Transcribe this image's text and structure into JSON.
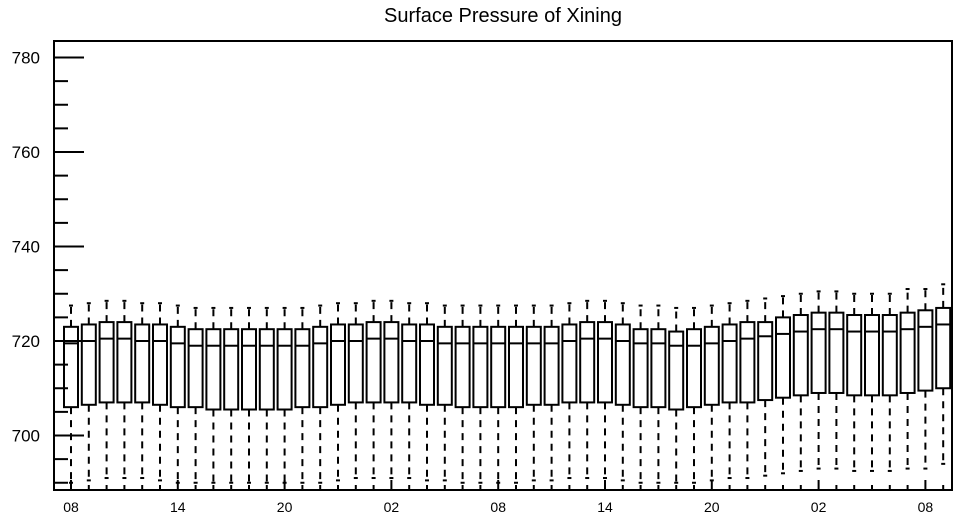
{
  "chart_data": {
    "type": "boxplot",
    "title": "Surface Pressure of Xining",
    "xlabel": "",
    "ylabel": "",
    "ylim": [
      688,
      784
    ],
    "yticks": [
      700,
      720,
      740,
      760,
      780
    ],
    "xtick_labels": [
      "08",
      "14",
      "20",
      "02",
      "08",
      "14",
      "20",
      "02",
      "08"
    ],
    "xtick_positions": [
      0,
      6,
      12,
      18,
      24,
      30,
      36,
      42,
      48
    ],
    "grid": false,
    "legend": "none",
    "boxes": [
      {
        "x": 0,
        "q1": 706,
        "median": 719.5,
        "q3": 723,
        "low": 690,
        "high": 727.5
      },
      {
        "x": 1,
        "q1": 706.5,
        "median": 720,
        "q3": 723.5,
        "low": 690.5,
        "high": 728
      },
      {
        "x": 2,
        "q1": 707,
        "median": 720.5,
        "q3": 724,
        "low": 691,
        "high": 728.5
      },
      {
        "x": 3,
        "q1": 707,
        "median": 720.5,
        "q3": 724,
        "low": 691,
        "high": 728.5
      },
      {
        "x": 4,
        "q1": 707,
        "median": 720,
        "q3": 723.5,
        "low": 691,
        "high": 728
      },
      {
        "x": 5,
        "q1": 706.5,
        "median": 720,
        "q3": 723.5,
        "low": 690.5,
        "high": 728
      },
      {
        "x": 6,
        "q1": 706,
        "median": 719.5,
        "q3": 723,
        "low": 690,
        "high": 727.5
      },
      {
        "x": 7,
        "q1": 706,
        "median": 719,
        "q3": 722.5,
        "low": 690,
        "high": 727
      },
      {
        "x": 8,
        "q1": 705.5,
        "median": 719,
        "q3": 722.5,
        "low": 690,
        "high": 727
      },
      {
        "x": 9,
        "q1": 705.5,
        "median": 719,
        "q3": 722.5,
        "low": 690,
        "high": 727
      },
      {
        "x": 10,
        "q1": 705.5,
        "median": 719,
        "q3": 722.5,
        "low": 690,
        "high": 727
      },
      {
        "x": 11,
        "q1": 705.5,
        "median": 719,
        "q3": 722.5,
        "low": 690,
        "high": 727
      },
      {
        "x": 12,
        "q1": 705.5,
        "median": 719,
        "q3": 722.5,
        "low": 690,
        "high": 727
      },
      {
        "x": 13,
        "q1": 706,
        "median": 719,
        "q3": 722.5,
        "low": 690,
        "high": 727
      },
      {
        "x": 14,
        "q1": 706,
        "median": 719.5,
        "q3": 723,
        "low": 690,
        "high": 727.5
      },
      {
        "x": 15,
        "q1": 706.5,
        "median": 720,
        "q3": 723.5,
        "low": 690.5,
        "high": 728
      },
      {
        "x": 16,
        "q1": 707,
        "median": 720,
        "q3": 723.5,
        "low": 691,
        "high": 728
      },
      {
        "x": 17,
        "q1": 707,
        "median": 720.5,
        "q3": 724,
        "low": 691,
        "high": 728.5
      },
      {
        "x": 18,
        "q1": 707,
        "median": 720.5,
        "q3": 724,
        "low": 691,
        "high": 728.5
      },
      {
        "x": 19,
        "q1": 707,
        "median": 720,
        "q3": 723.5,
        "low": 691,
        "high": 728
      },
      {
        "x": 20,
        "q1": 706.5,
        "median": 720,
        "q3": 723.5,
        "low": 690.5,
        "high": 728
      },
      {
        "x": 21,
        "q1": 706.5,
        "median": 719.5,
        "q3": 723,
        "low": 690.5,
        "high": 727.5
      },
      {
        "x": 22,
        "q1": 706,
        "median": 719.5,
        "q3": 723,
        "low": 690,
        "high": 727.5
      },
      {
        "x": 23,
        "q1": 706,
        "median": 719.5,
        "q3": 723,
        "low": 690,
        "high": 727.5
      },
      {
        "x": 24,
        "q1": 706,
        "median": 719.5,
        "q3": 723,
        "low": 690,
        "high": 727.5
      },
      {
        "x": 25,
        "q1": 706,
        "median": 719.5,
        "q3": 723,
        "low": 690,
        "high": 727.5
      },
      {
        "x": 26,
        "q1": 706.5,
        "median": 719.5,
        "q3": 723,
        "low": 690.5,
        "high": 727.5
      },
      {
        "x": 27,
        "q1": 706.5,
        "median": 719.5,
        "q3": 723,
        "low": 690.5,
        "high": 727.5
      },
      {
        "x": 28,
        "q1": 707,
        "median": 720,
        "q3": 723.5,
        "low": 691,
        "high": 728
      },
      {
        "x": 29,
        "q1": 707,
        "median": 720.5,
        "q3": 724,
        "low": 691,
        "high": 728.5
      },
      {
        "x": 30,
        "q1": 707,
        "median": 720.5,
        "q3": 724,
        "low": 691,
        "high": 728.5
      },
      {
        "x": 31,
        "q1": 706.5,
        "median": 720,
        "q3": 723.5,
        "low": 690.5,
        "high": 728
      },
      {
        "x": 32,
        "q1": 706,
        "median": 719.5,
        "q3": 722.5,
        "low": 690,
        "high": 727.5
      },
      {
        "x": 33,
        "q1": 706,
        "median": 719.5,
        "q3": 722.5,
        "low": 690,
        "high": 727.5
      },
      {
        "x": 34,
        "q1": 705.5,
        "median": 719,
        "q3": 722,
        "low": 690,
        "high": 727
      },
      {
        "x": 35,
        "q1": 706,
        "median": 719,
        "q3": 722.5,
        "low": 690,
        "high": 727
      },
      {
        "x": 36,
        "q1": 706.5,
        "median": 719.5,
        "q3": 723,
        "low": 690.5,
        "high": 727.5
      },
      {
        "x": 37,
        "q1": 707,
        "median": 720,
        "q3": 723.5,
        "low": 691,
        "high": 728
      },
      {
        "x": 38,
        "q1": 707,
        "median": 720.5,
        "q3": 724,
        "low": 691,
        "high": 728.5
      },
      {
        "x": 39,
        "q1": 707.5,
        "median": 721,
        "q3": 724,
        "low": 691.5,
        "high": 729
      },
      {
        "x": 40,
        "q1": 708,
        "median": 721.5,
        "q3": 725,
        "low": 692,
        "high": 729.5
      },
      {
        "x": 41,
        "q1": 708.5,
        "median": 722,
        "q3": 725.5,
        "low": 692.5,
        "high": 730
      },
      {
        "x": 42,
        "q1": 709,
        "median": 722.5,
        "q3": 726,
        "low": 693,
        "high": 730.5
      },
      {
        "x": 43,
        "q1": 709,
        "median": 722.5,
        "q3": 726,
        "low": 693,
        "high": 730.5
      },
      {
        "x": 44,
        "q1": 708.5,
        "median": 722,
        "q3": 725.5,
        "low": 692.5,
        "high": 730
      },
      {
        "x": 45,
        "q1": 708.5,
        "median": 722,
        "q3": 725.5,
        "low": 692.5,
        "high": 730
      },
      {
        "x": 46,
        "q1": 708.5,
        "median": 722,
        "q3": 725.5,
        "low": 692.5,
        "high": 730
      },
      {
        "x": 47,
        "q1": 709,
        "median": 722.5,
        "q3": 726,
        "low": 693,
        "high": 731
      },
      {
        "x": 48,
        "q1": 709.5,
        "median": 723,
        "q3": 726.5,
        "low": 693,
        "high": 731
      },
      {
        "x": 49,
        "q1": 710,
        "median": 723.5,
        "q3": 727,
        "low": 694,
        "high": 732
      }
    ]
  }
}
